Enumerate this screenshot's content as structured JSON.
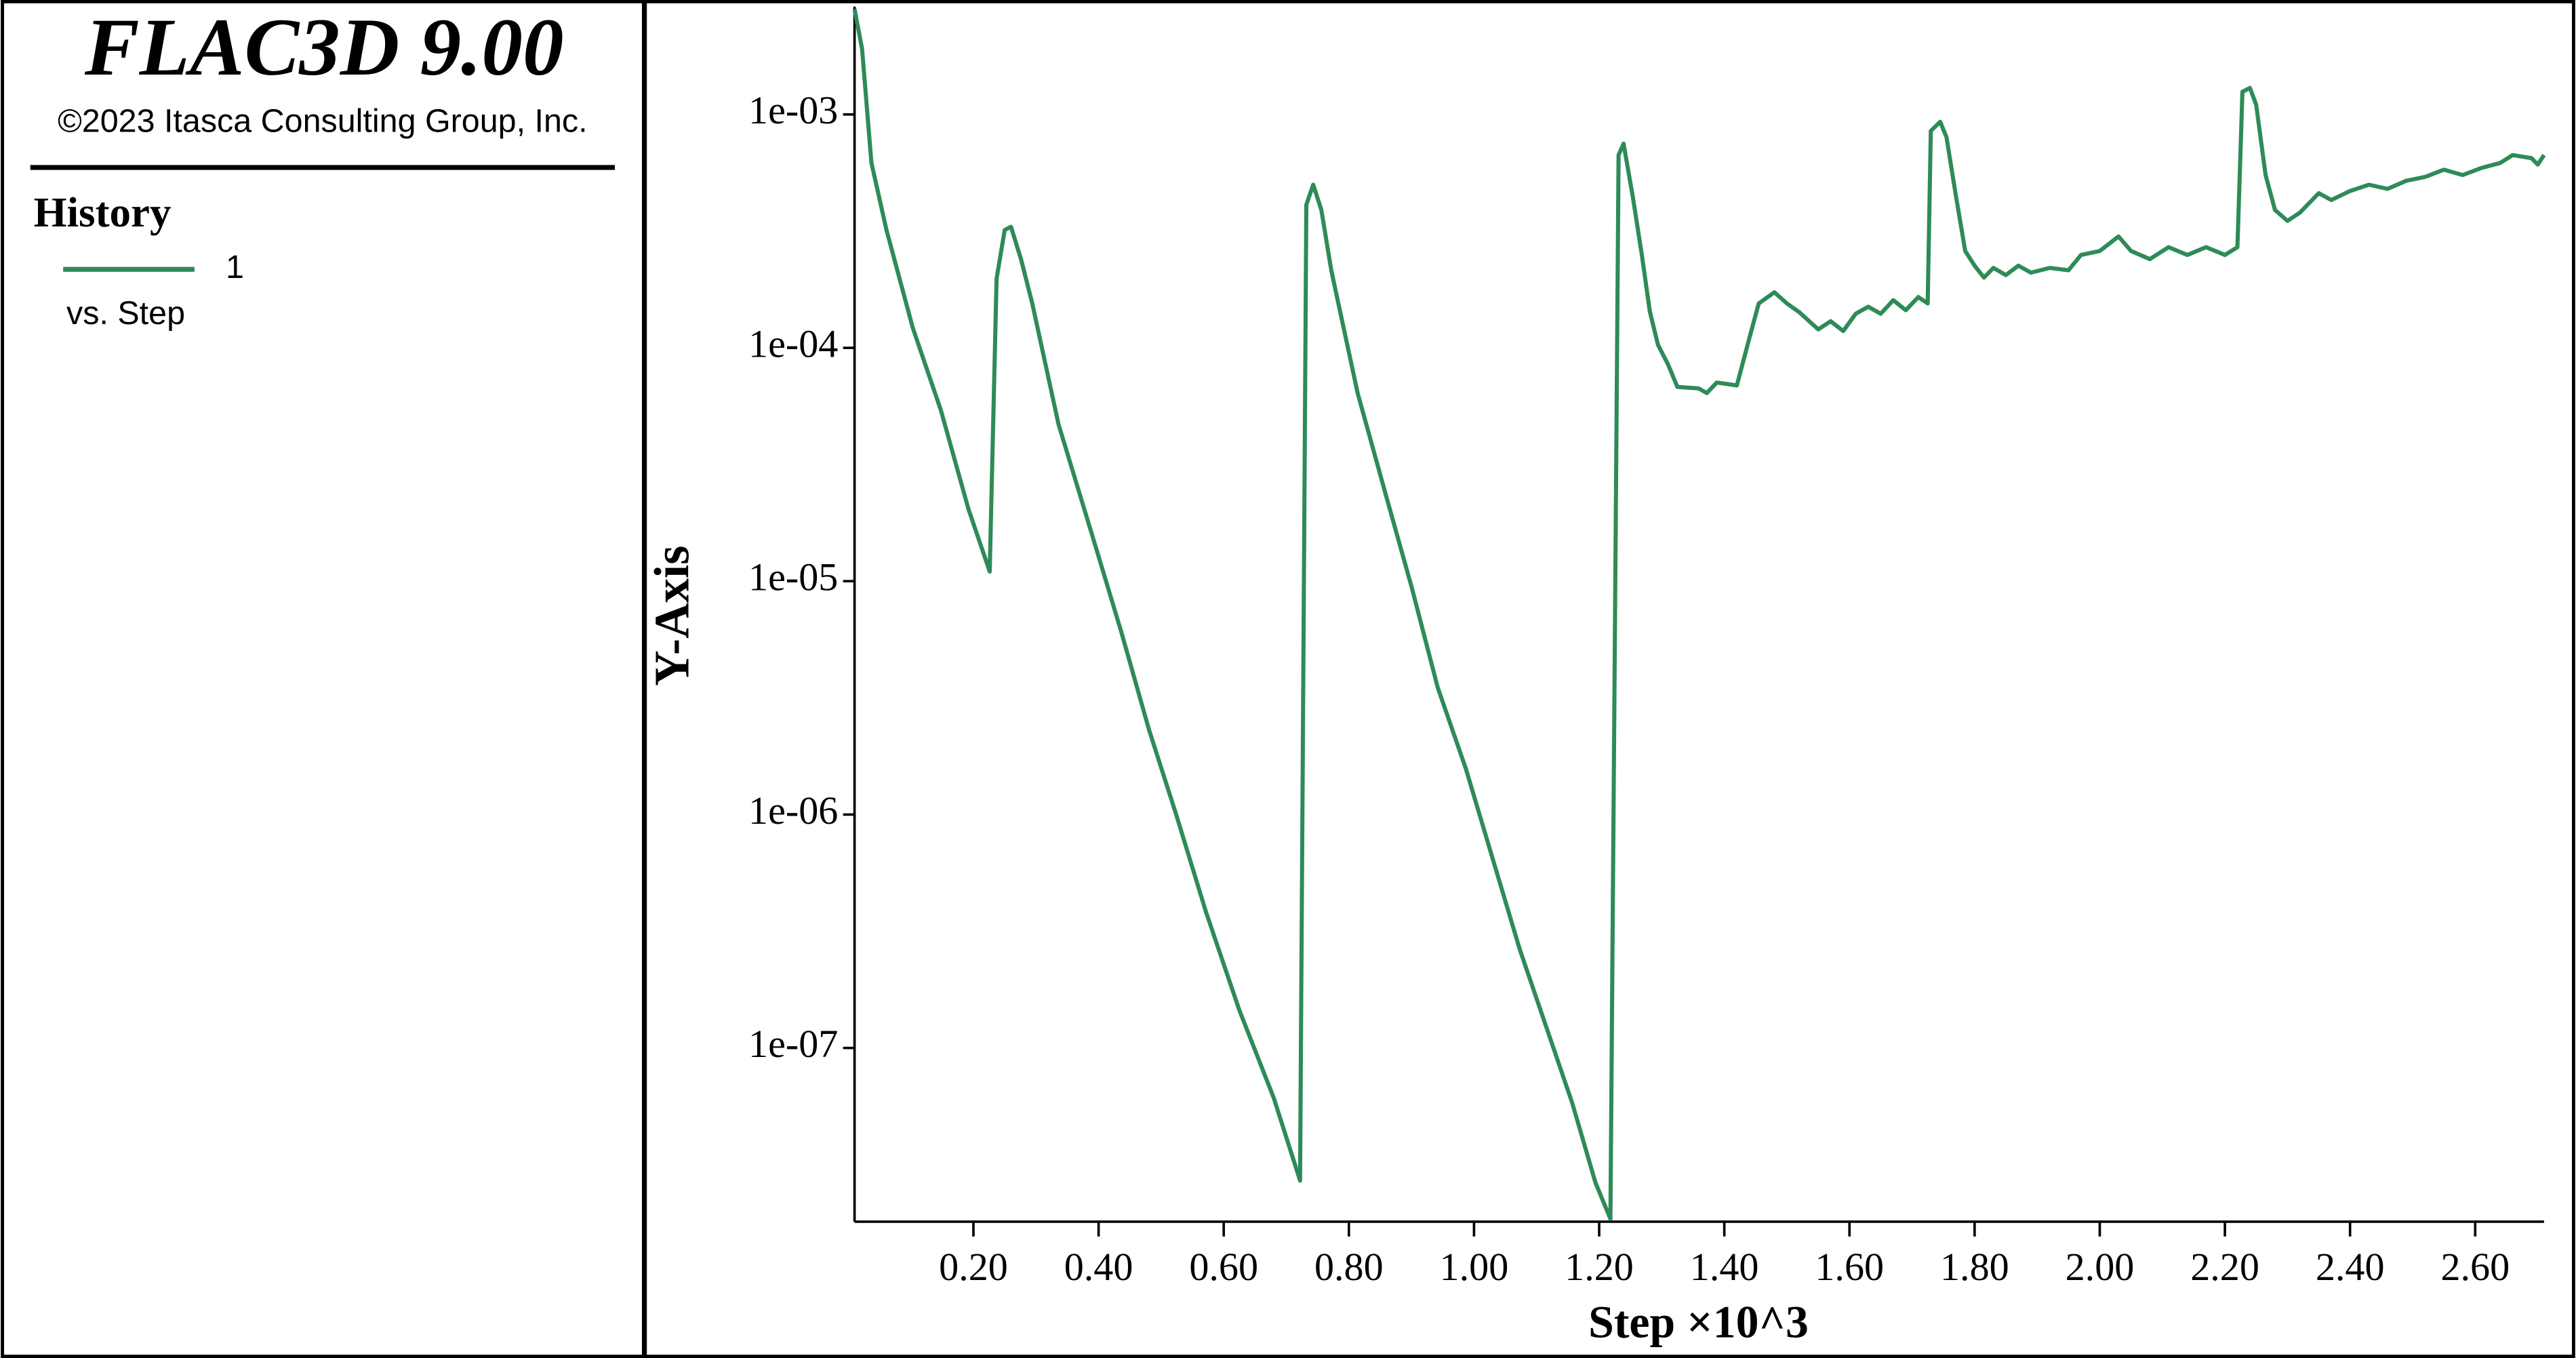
{
  "chart_data": {
    "type": "line",
    "title": "FLAC3D 9.00",
    "subtitle": "©2023 Itasca Consulting Group, Inc.",
    "legend_title": "History",
    "legend_note": "vs. Step",
    "x_label": "Step ×10^3",
    "y_label": "Y-Axis",
    "y_scale": "log",
    "xlim": [
      0.01,
      2.71
    ],
    "ylim": [
      1.8e-08,
      0.0029
    ],
    "xticks": [
      {
        "value": 0.2,
        "label": "0.20"
      },
      {
        "value": 0.4,
        "label": "0.40"
      },
      {
        "value": 0.6,
        "label": "0.60"
      },
      {
        "value": 0.8,
        "label": "0.80"
      },
      {
        "value": 1.0,
        "label": "1.00"
      },
      {
        "value": 1.2,
        "label": "1.20"
      },
      {
        "value": 1.4,
        "label": "1.40"
      },
      {
        "value": 1.6,
        "label": "1.60"
      },
      {
        "value": 1.8,
        "label": "1.80"
      },
      {
        "value": 2.0,
        "label": "2.00"
      },
      {
        "value": 2.2,
        "label": "2.20"
      },
      {
        "value": 2.4,
        "label": "2.40"
      },
      {
        "value": 2.6,
        "label": "2.60"
      }
    ],
    "yticks": [
      {
        "value": 0.001,
        "label": "1e-03"
      },
      {
        "value": 0.0001,
        "label": "1e-04"
      },
      {
        "value": 1e-05,
        "label": "1e-05"
      },
      {
        "value": 1e-06,
        "label": "1e-06"
      },
      {
        "value": 1e-07,
        "label": "1e-07"
      }
    ],
    "x": [
      0.01,
      0.022,
      0.037,
      0.061,
      0.103,
      0.148,
      0.192,
      0.226,
      0.237,
      0.25,
      0.26,
      0.276,
      0.294,
      0.336,
      0.389,
      0.436,
      0.481,
      0.523,
      0.572,
      0.625,
      0.68,
      0.722,
      0.732,
      0.743,
      0.756,
      0.772,
      0.814,
      0.858,
      0.9,
      0.942,
      0.987,
      1.026,
      1.073,
      1.115,
      1.157,
      1.194,
      1.218,
      1.231,
      1.239,
      1.254,
      1.268,
      1.281,
      1.294,
      1.31,
      1.325,
      1.359,
      1.372,
      1.388,
      1.42,
      1.44,
      1.455,
      1.48,
      1.5,
      1.52,
      1.55,
      1.57,
      1.59,
      1.61,
      1.63,
      1.65,
      1.67,
      1.69,
      1.71,
      1.725,
      1.73,
      1.745,
      1.755,
      1.77,
      1.785,
      1.8,
      1.815,
      1.83,
      1.85,
      1.87,
      1.89,
      1.92,
      1.95,
      1.97,
      2.0,
      2.03,
      2.05,
      2.08,
      2.11,
      2.14,
      2.17,
      2.2,
      2.22,
      2.228,
      2.24,
      2.25,
      2.265,
      2.28,
      2.3,
      2.32,
      2.35,
      2.37,
      2.4,
      2.43,
      2.46,
      2.49,
      2.52,
      2.55,
      2.58,
      2.61,
      2.64,
      2.66,
      2.69,
      2.7,
      2.71
    ],
    "series": [
      {
        "name": "1",
        "color": "#2e8b57",
        "values": [
          0.00283,
          0.00191,
          0.00062,
          0.00032,
          0.000122,
          5.4e-05,
          2.04e-05,
          1.1e-05,
          0.000198,
          0.00032,
          0.00033,
          0.00024,
          0.000155,
          4.7e-05,
          1.6e-05,
          6.1e-06,
          2.29e-06,
          1.02e-06,
          3.8e-07,
          1.45e-07,
          6.1e-08,
          2.7e-08,
          0.00041,
          0.0005,
          0.00039,
          0.000214,
          6.4e-05,
          2.4e-05,
          9.5e-06,
          3.5e-06,
          1.57e-06,
          7e-07,
          2.65e-07,
          1.24e-07,
          5.8e-08,
          2.65e-08,
          1.85e-08,
          0.00067,
          0.00075,
          0.00044,
          0.000252,
          0.000143,
          0.000103,
          8.5e-05,
          6.8e-05,
          6.7e-05,
          6.4e-05,
          7.1e-05,
          6.9e-05,
          0.00011,
          0.000155,
          0.000173,
          0.000155,
          0.000142,
          0.00012,
          0.00013,
          0.000118,
          0.00014,
          0.00015,
          0.00014,
          0.00016,
          0.000145,
          0.000165,
          0.000155,
          0.00085,
          0.00093,
          0.0008,
          0.00045,
          0.00026,
          0.000225,
          0.0002,
          0.00022,
          0.000205,
          0.000225,
          0.00021,
          0.00022,
          0.000215,
          0.00025,
          0.00026,
          0.0003,
          0.00026,
          0.00024,
          0.00027,
          0.00025,
          0.00027,
          0.00025,
          0.00027,
          0.00125,
          0.0013,
          0.0011,
          0.00055,
          0.00039,
          0.00035,
          0.00038,
          0.00046,
          0.00043,
          0.00047,
          0.0005,
          0.00048,
          0.00052,
          0.00054,
          0.00058,
          0.00055,
          0.00059,
          0.00062,
          0.00067,
          0.00065,
          0.00061,
          0.00067
        ]
      }
    ]
  }
}
